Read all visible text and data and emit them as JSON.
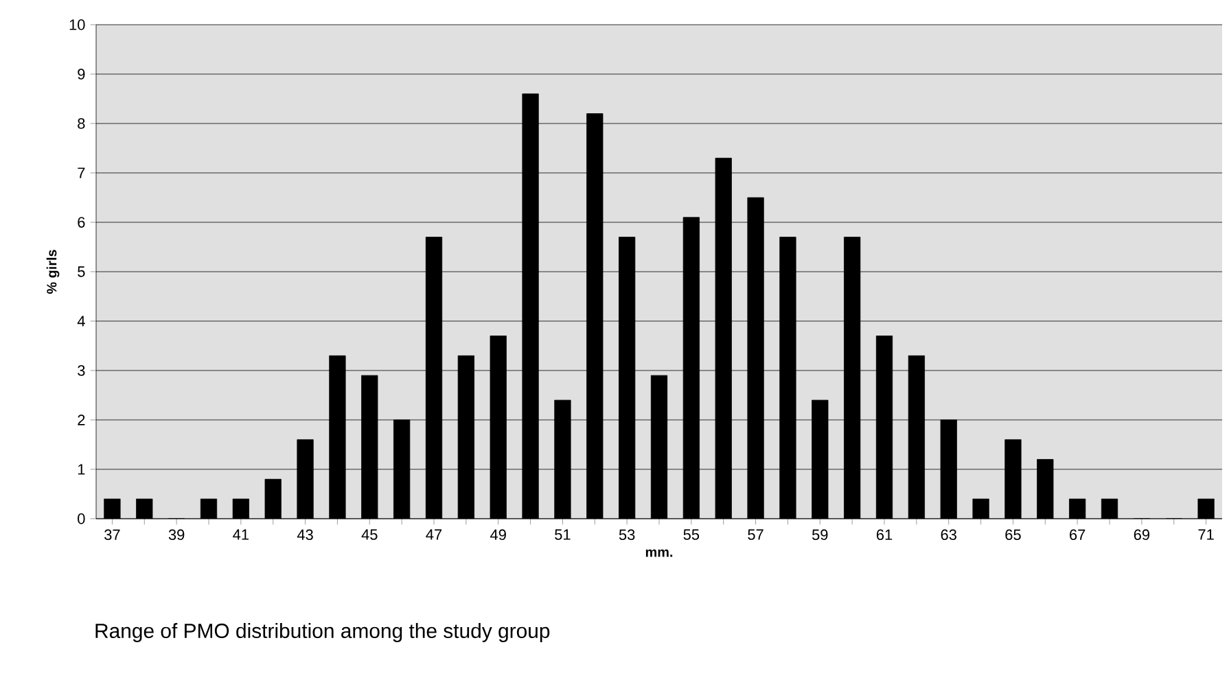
{
  "chart_data": {
    "type": "bar",
    "title": "Range of PMO distribution among the study group",
    "xlabel": "mm.",
    "ylabel": "% girls",
    "categories": [
      "37",
      null,
      "39",
      null,
      "41",
      null,
      "43",
      null,
      "45",
      null,
      "47",
      null,
      "49",
      null,
      "51",
      null,
      "53",
      null,
      "55",
      null,
      "57",
      null,
      "59",
      null,
      "61",
      null,
      "63",
      null,
      "65",
      null,
      "67",
      null,
      "69",
      null,
      "71"
    ],
    "values": [
      0.4,
      0.4,
      0,
      0.4,
      0.4,
      0.8,
      1.6,
      3.3,
      2.9,
      2.0,
      5.7,
      3.3,
      3.7,
      8.6,
      2.4,
      8.2,
      5.7,
      2.9,
      6.1,
      7.3,
      6.5,
      5.7,
      2.4,
      5.7,
      3.7,
      3.3,
      2.0,
      0.4,
      1.6,
      1.2,
      0.4,
      0.4,
      0,
      0,
      0.4
    ],
    "color": "#000000",
    "ylim": [
      0,
      10
    ],
    "yticks": [
      0,
      1,
      2,
      3,
      4,
      5,
      6,
      7,
      8,
      9,
      10
    ],
    "grid": "y"
  }
}
